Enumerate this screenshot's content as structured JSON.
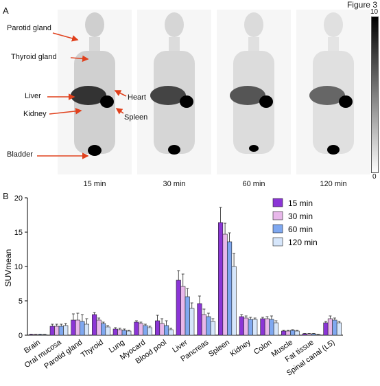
{
  "figure_label": "Figure 3",
  "panel_a_label": "A",
  "panel_b_label": "B",
  "time_points": [
    "15 min",
    "30 min",
    "60 min",
    "120 min"
  ],
  "organ_annotations": [
    "Parotid gland",
    "Thyroid gland",
    "Liver",
    "Heart",
    "Kidney",
    "Spleen",
    "Bladder"
  ],
  "colorbar": {
    "max": "10",
    "min": "0"
  },
  "chart_data": {
    "type": "bar",
    "ylabel": "SUVmean",
    "xlabel": "",
    "ylim": [
      0,
      20
    ],
    "yticks": [
      0,
      5,
      10,
      15,
      20
    ],
    "legend_position": "top-right",
    "categories": [
      "Brain",
      "Oral mucosa",
      "Parotid gland",
      "Thyroid",
      "Lung",
      "Myocard",
      "Blood pool",
      "Liver",
      "Pancreas",
      "Spleen",
      "Kidney",
      "Colon",
      "Muscle",
      "Fat tissue",
      "Spinal canal (L5)"
    ],
    "series": [
      {
        "name": "15 min",
        "color": "#8b35d6",
        "values": [
          0.1,
          1.3,
          2.2,
          3.0,
          0.9,
          1.9,
          2.1,
          8.0,
          4.6,
          16.4,
          2.7,
          2.4,
          0.6,
          0.2,
          1.8
        ],
        "errors": [
          0.05,
          0.3,
          0.9,
          0.3,
          0.2,
          0.2,
          0.8,
          1.4,
          1.1,
          2.2,
          0.3,
          0.2,
          0.1,
          0.05,
          0.2
        ]
      },
      {
        "name": "30 min",
        "color": "#e8b8ea",
        "values": [
          0.1,
          1.3,
          2.2,
          2.2,
          0.8,
          1.7,
          1.7,
          7.1,
          3.0,
          14.7,
          2.5,
          2.4,
          0.6,
          0.2,
          2.4
        ],
        "errors": [
          0.05,
          0.3,
          1.0,
          0.3,
          0.2,
          0.2,
          0.7,
          1.8,
          0.8,
          1.6,
          0.3,
          0.3,
          0.1,
          0.05,
          0.4
        ]
      },
      {
        "name": "60 min",
        "color": "#7fa8f0",
        "values": [
          0.1,
          1.3,
          2.0,
          1.7,
          0.7,
          1.4,
          1.4,
          5.6,
          2.7,
          13.6,
          2.3,
          2.3,
          0.7,
          0.2,
          2.2
        ],
        "errors": [
          0.05,
          0.3,
          1.0,
          0.2,
          0.2,
          0.2,
          0.7,
          1.2,
          0.5,
          1.3,
          0.3,
          0.5,
          0.1,
          0.05,
          0.3
        ]
      },
      {
        "name": "120 min",
        "color": "#d6e6fb",
        "values": [
          0.1,
          1.4,
          1.6,
          1.2,
          0.6,
          1.1,
          0.8,
          3.9,
          2.0,
          10.0,
          2.3,
          1.8,
          0.6,
          0.1,
          1.8
        ],
        "errors": [
          0.05,
          0.3,
          0.8,
          0.2,
          0.1,
          0.2,
          0.2,
          0.8,
          0.4,
          1.9,
          0.2,
          0.3,
          0.1,
          0.05,
          0.2
        ]
      }
    ]
  }
}
